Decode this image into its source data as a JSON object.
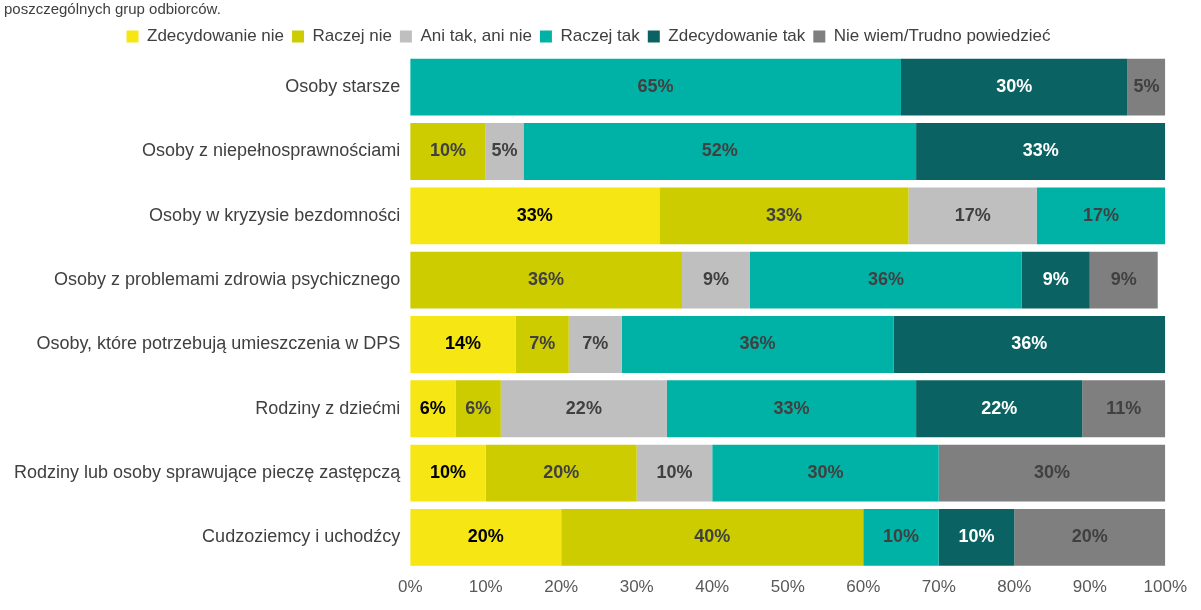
{
  "chart_data": {
    "type": "bar",
    "orientation": "horizontal",
    "stacked": true,
    "title": "poszczególnych grup odbiorców.",
    "categories": [
      "Osoby starsze",
      "Osoby z niepełnosprawnościami",
      "Osoby w kryzysie bezdomności",
      "Osoby z problemami zdrowia psychicznego",
      "Osoby, które potrzebują umieszczenia w DPS",
      "Rodziny z dziećmi",
      "Rodziny lub osoby sprawujące pieczę zastępczą",
      "Cudzoziemcy i uchodźcy"
    ],
    "series": [
      {
        "name": "Zdecydowanie nie",
        "color": "#f5e614",
        "values": [
          0,
          0,
          33,
          0,
          14,
          6,
          10,
          20
        ],
        "value_labels": [
          null,
          null,
          "33%",
          null,
          "14%",
          "6%",
          "10%",
          "20%"
        ]
      },
      {
        "name": "Raczej nie",
        "color": "#cccc00",
        "values": [
          0,
          10,
          33,
          36,
          7,
          6,
          20,
          40
        ],
        "value_labels": [
          null,
          "10%",
          "33%",
          "36%",
          "7%",
          "6%",
          "20%",
          "40%"
        ]
      },
      {
        "name": "Ani tak, ani nie",
        "color": "#bfbfbf",
        "values": [
          0,
          5,
          17,
          9,
          7,
          22,
          10,
          0
        ],
        "value_labels": [
          null,
          "5%",
          "17%",
          "9%",
          "7%",
          "22%",
          "10%",
          null
        ]
      },
      {
        "name": "Raczej tak",
        "color": "#00b2a5",
        "values": [
          65,
          52,
          17,
          36,
          36,
          33,
          30,
          10
        ],
        "value_labels": [
          "65%",
          "52%",
          "17%",
          "36%",
          "36%",
          "33%",
          "30%",
          "10%"
        ]
      },
      {
        "name": "Zdecydowanie tak",
        "color": "#0b6262",
        "values": [
          30,
          33,
          0,
          9,
          36,
          22,
          0,
          10
        ],
        "value_labels": [
          "30%",
          "33%",
          null,
          "9%",
          "36%",
          "22%",
          null,
          "10%"
        ]
      },
      {
        "name": "Nie wiem/Trudno powiedzieć",
        "color": "#7f7f7f",
        "values": [
          5,
          0,
          0,
          9,
          0,
          11,
          30,
          20
        ],
        "value_labels": [
          "5%",
          null,
          null,
          "9%",
          null,
          "11%",
          "30%",
          "20%"
        ]
      }
    ],
    "xlim": [
      0,
      100
    ],
    "xticks": [
      {
        "value": 0,
        "label": "0%"
      },
      {
        "value": 10,
        "label": "10%"
      },
      {
        "value": 20,
        "label": "20%"
      },
      {
        "value": 30,
        "label": "30%"
      },
      {
        "value": 40,
        "label": "40%"
      },
      {
        "value": 50,
        "label": "50%"
      },
      {
        "value": 60,
        "label": "60%"
      },
      {
        "value": 70,
        "label": "70%"
      },
      {
        "value": 80,
        "label": "80%"
      },
      {
        "value": 90,
        "label": "90%"
      },
      {
        "value": 100,
        "label": "100%"
      }
    ],
    "legend": "top",
    "grid": false
  }
}
